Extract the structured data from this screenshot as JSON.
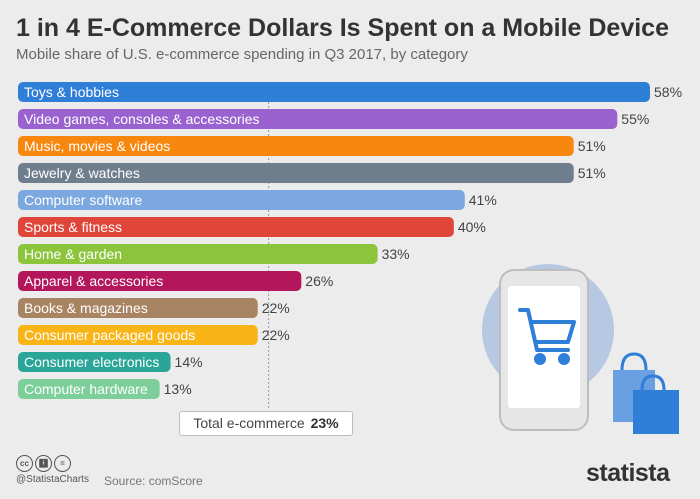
{
  "header": {
    "title": "1 in 4 E-Commerce Dollars Is Spent on a Mobile Device",
    "subtitle": "Mobile share of U.S. e-commerce spending in Q3 2017, by category"
  },
  "chart_data": {
    "type": "bar",
    "orientation": "horizontal",
    "categories": [
      "Toys & hobbies",
      "Video games, consoles & accessories",
      "Music, movies & videos",
      "Jewelry & watches",
      "Computer software",
      "Sports & fitness",
      "Home & garden",
      "Apparel & accessories",
      "Books & magazines",
      "Consumer packaged goods",
      "Consumer electronics",
      "Computer hardware"
    ],
    "values": [
      58,
      55,
      51,
      51,
      41,
      40,
      33,
      26,
      22,
      22,
      14,
      13
    ],
    "value_labels": [
      "58%",
      "55%",
      "51%",
      "51%",
      "41%",
      "40%",
      "33%",
      "26%",
      "22%",
      "22%",
      "14%",
      "13%"
    ],
    "colors": [
      "#2f7ed8",
      "#9a62cf",
      "#f7870f",
      "#6f7e8c",
      "#7ca8e0",
      "#e0453a",
      "#8cc43c",
      "#b3165a",
      "#a98463",
      "#f9b418",
      "#2aa698",
      "#7dcf9a"
    ],
    "reference_line": 23,
    "xlim": [
      0,
      58
    ],
    "grid": false,
    "legend": "none"
  },
  "total": {
    "label": "Total e-commerce",
    "value": "23%"
  },
  "footer": {
    "license_icons": [
      "cc-icon",
      "by-icon",
      "equals-icon"
    ],
    "handle": "@StatistaCharts",
    "source": "Source: comScore",
    "brand": "statista"
  }
}
